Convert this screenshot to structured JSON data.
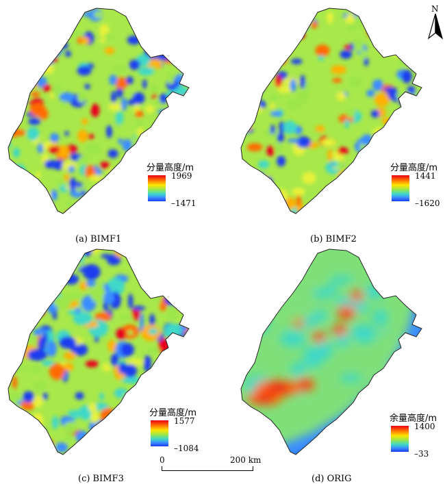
{
  "panels": [
    {
      "caption": "(a) BIMF1",
      "legend_title": "分量高度/m",
      "max": "1969",
      "min": "–1471",
      "pattern": "bimf"
    },
    {
      "caption": "(b) BIMF2",
      "legend_title": "分量高度/m",
      "max": "1441",
      "min": "–1620",
      "pattern": "bimf"
    },
    {
      "caption": "(c) BIMF3",
      "legend_title": "分量高度/m",
      "max": "1577",
      "min": "–1084",
      "pattern": "bimf"
    },
    {
      "caption": "(d) ORIG",
      "legend_title": "余量高度/m",
      "max": "1400",
      "min": "–33",
      "pattern": "orig"
    }
  ],
  "scale_bar": {
    "start": "0",
    "end": "200 km"
  },
  "north_arrow": {
    "label": "N",
    "icon": "north-arrow-icon"
  },
  "colors": {
    "red": "#e8001a",
    "orange": "#ff6a00",
    "yellow": "#ffe600",
    "green": "#9be64b",
    "cyan": "#3fd8c8",
    "blue": "#1a3cf0"
  }
}
